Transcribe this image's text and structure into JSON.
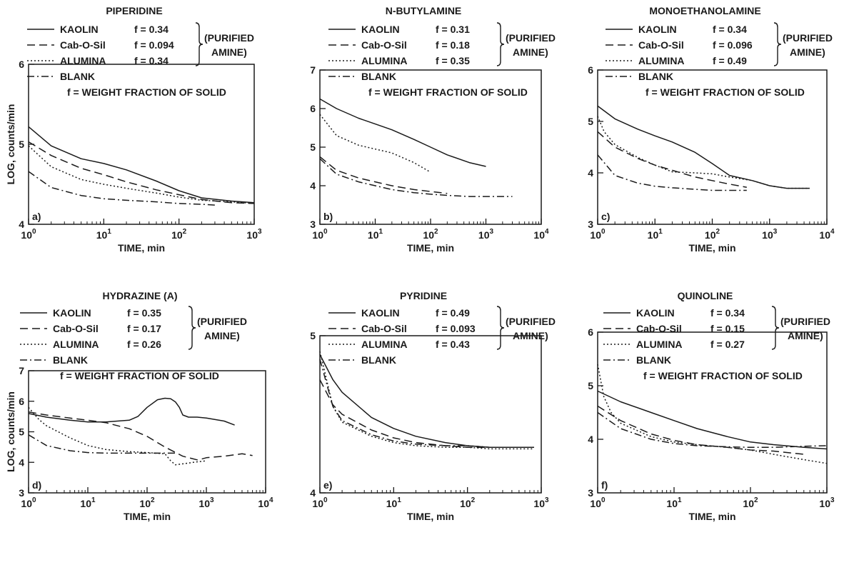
{
  "chart_data": [
    {
      "panel_label": "a)",
      "type": "line",
      "title": "PIPERIDINE",
      "xlabel": "TIME, min",
      "ylabel": "LOG, counts/min",
      "x_scale": "log",
      "xlim": [
        1,
        1000
      ],
      "ylim": [
        4,
        6
      ],
      "x_ticks": [
        "10^0",
        "10^1",
        "10^2",
        "10^3"
      ],
      "y_ticks": [
        "4",
        "5",
        "6"
      ],
      "legend_note": "f = WEIGHT FRACTION OF SOLID",
      "bracket_label": [
        "(PURIFIED",
        "AMINE)"
      ],
      "series": [
        {
          "name": "KAOLIN",
          "f_label": "f = 0.34",
          "style": "solid",
          "x": [
            1,
            2,
            5,
            10,
            20,
            50,
            100,
            200,
            500,
            1000
          ],
          "y": [
            5.22,
            4.98,
            4.82,
            4.76,
            4.68,
            4.54,
            4.42,
            4.33,
            4.29,
            4.27
          ]
        },
        {
          "name": "Cab-O-Sil",
          "f_label": "f = 0.094",
          "style": "dashed",
          "x": [
            1,
            2,
            5,
            10,
            20,
            50,
            100,
            200,
            500,
            1000
          ],
          "y": [
            5.03,
            4.86,
            4.7,
            4.62,
            4.53,
            4.43,
            4.37,
            4.31,
            4.27,
            4.26
          ]
        },
        {
          "name": "ALUMINA",
          "f_label": "f = 0.34",
          "style": "dotted",
          "x": [
            1,
            2,
            5,
            10,
            20,
            50,
            100,
            200,
            500,
            1000
          ],
          "y": [
            4.98,
            4.72,
            4.56,
            4.5,
            4.45,
            4.39,
            4.34,
            4.3,
            4.28,
            4.26
          ]
        },
        {
          "name": "BLANK",
          "style": "dashdot",
          "x": [
            1,
            2,
            5,
            10,
            20,
            50,
            100,
            200,
            300
          ],
          "y": [
            4.66,
            4.46,
            4.36,
            4.32,
            4.3,
            4.28,
            4.26,
            4.25,
            4.24
          ]
        }
      ]
    },
    {
      "panel_label": "b)",
      "type": "line",
      "title": "N-BUTYLAMINE",
      "xlabel": "TIME, min",
      "ylabel": "",
      "x_scale": "log",
      "xlim": [
        1,
        10000
      ],
      "ylim": [
        3,
        7
      ],
      "x_ticks": [
        "10^0",
        "10^1",
        "10^2",
        "10^3",
        "10^4"
      ],
      "y_ticks": [
        "3",
        "4",
        "5",
        "6",
        "7"
      ],
      "legend_note": "f = WEIGHT FRACTION OF SOLID",
      "bracket_label": [
        "(PURIFIED",
        "AMINE)"
      ],
      "series": [
        {
          "name": "KAOLIN",
          "f_label": "f = 0.31",
          "style": "solid",
          "x": [
            1,
            2,
            5,
            10,
            20,
            50,
            100,
            200,
            500,
            1000
          ],
          "y": [
            6.25,
            6.0,
            5.75,
            5.6,
            5.45,
            5.2,
            5.0,
            4.8,
            4.6,
            4.5
          ]
        },
        {
          "name": "Cab-O-Sil",
          "f_label": "f = 0.18",
          "style": "dashed",
          "x": [
            1,
            2,
            5,
            10,
            20,
            50,
            100,
            200
          ],
          "y": [
            4.75,
            4.4,
            4.2,
            4.1,
            4.0,
            3.9,
            3.85,
            3.8
          ]
        },
        {
          "name": "ALUMINA",
          "f_label": "f = 0.35",
          "style": "dotted",
          "x": [
            1,
            2,
            5,
            10,
            20,
            50,
            100
          ],
          "y": [
            5.85,
            5.3,
            5.05,
            4.95,
            4.85,
            4.6,
            4.35
          ]
        },
        {
          "name": "BLANK",
          "style": "dashdot",
          "x": [
            1,
            2,
            5,
            10,
            20,
            50,
            100,
            200,
            500,
            1000,
            3000
          ],
          "y": [
            4.7,
            4.3,
            4.1,
            4.0,
            3.9,
            3.82,
            3.78,
            3.75,
            3.72,
            3.72,
            3.72
          ]
        }
      ]
    },
    {
      "panel_label": "c)",
      "type": "line",
      "title": "MONOETHANOLAMINE",
      "xlabel": "TIME, min",
      "ylabel": "",
      "x_scale": "log",
      "xlim": [
        1,
        10000
      ],
      "ylim": [
        3,
        6
      ],
      "x_ticks": [
        "10^0",
        "10^1",
        "10^2",
        "10^3",
        "10^4"
      ],
      "y_ticks": [
        "3",
        "4",
        "5",
        "6"
      ],
      "legend_note": "f = WEIGHT FRACTION OF SOLID",
      "bracket_label": [
        "(PURIFIED",
        "AMINE)"
      ],
      "series": [
        {
          "name": "KAOLIN",
          "f_label": "f = 0.34",
          "style": "solid",
          "x": [
            1,
            2,
            5,
            10,
            20,
            50,
            100,
            200,
            500,
            1000,
            2000,
            5000
          ],
          "y": [
            5.3,
            5.05,
            4.85,
            4.72,
            4.6,
            4.4,
            4.18,
            3.95,
            3.85,
            3.75,
            3.7,
            3.7
          ]
        },
        {
          "name": "Cab-O-Sil",
          "f_label": "f = 0.096",
          "style": "dashed",
          "x": [
            1,
            2,
            5,
            10,
            20,
            50,
            100,
            200,
            400
          ],
          "y": [
            4.8,
            4.5,
            4.28,
            4.15,
            4.05,
            3.92,
            3.85,
            3.78,
            3.72
          ]
        },
        {
          "name": "ALUMINA",
          "f_label": "f = 0.49",
          "style": "dotted",
          "x": [
            1,
            1.3,
            2,
            5,
            10,
            20,
            50,
            100,
            200,
            500,
            1000,
            2000,
            5000
          ],
          "y": [
            5.1,
            4.8,
            4.55,
            4.3,
            4.15,
            4.02,
            4.0,
            3.98,
            3.92,
            3.85,
            3.75,
            3.7,
            3.7
          ]
        },
        {
          "name": "BLANK",
          "style": "dashdot",
          "x": [
            1,
            2,
            5,
            10,
            20,
            50,
            100,
            200,
            400
          ],
          "y": [
            4.35,
            3.95,
            3.8,
            3.74,
            3.71,
            3.68,
            3.66,
            3.66,
            3.66
          ]
        }
      ]
    },
    {
      "panel_label": "d)",
      "type": "line",
      "title": "HYDRAZINE (A)",
      "xlabel": "TIME, min",
      "ylabel": "LOG, counts/min",
      "x_scale": "log",
      "xlim": [
        1,
        10000
      ],
      "ylim": [
        3,
        7
      ],
      "x_ticks": [
        "10^0",
        "10^1",
        "10^2",
        "10^3",
        "10^4"
      ],
      "y_ticks": [
        "3",
        "4",
        "5",
        "6",
        "7"
      ],
      "legend_note": "f = WEIGHT FRACTION OF SOLID",
      "bracket_label": [
        "(PURIFIED",
        "AMINE)"
      ],
      "series": [
        {
          "name": "KAOLIN",
          "f_label": "f = 0.35",
          "style": "solid",
          "x": [
            1,
            2,
            5,
            10,
            20,
            50,
            70,
            100,
            150,
            200,
            250,
            300,
            350,
            400,
            500,
            700,
            1000,
            2000,
            3000
          ],
          "y": [
            5.6,
            5.48,
            5.38,
            5.32,
            5.32,
            5.38,
            5.5,
            5.8,
            6.05,
            6.1,
            6.08,
            5.98,
            5.8,
            5.55,
            5.48,
            5.48,
            5.45,
            5.35,
            5.22
          ]
        },
        {
          "name": "Cab-O-Sil",
          "f_label": "f = 0.17",
          "style": "dashed",
          "x": [
            1,
            2,
            5,
            10,
            20,
            50,
            100,
            200,
            400,
            700,
            800,
            1000,
            2000,
            4000,
            6000
          ],
          "y": [
            5.65,
            5.55,
            5.45,
            5.38,
            5.3,
            5.1,
            4.85,
            4.5,
            4.2,
            4.08,
            4.1,
            4.15,
            4.2,
            4.28,
            4.22
          ]
        },
        {
          "name": "ALUMINA",
          "f_label": "f = 0.26",
          "style": "dotted",
          "x": [
            1,
            1.5,
            2,
            5,
            10,
            20,
            50,
            100,
            200,
            250,
            300,
            400,
            600,
            1000
          ],
          "y": [
            5.8,
            5.4,
            5.2,
            4.8,
            4.55,
            4.42,
            4.35,
            4.32,
            4.28,
            4.05,
            3.92,
            3.95,
            4.0,
            4.05
          ]
        },
        {
          "name": "BLANK",
          "style": "dashdot",
          "x": [
            1,
            2,
            5,
            10,
            20,
            50,
            100,
            200,
            300
          ],
          "y": [
            4.9,
            4.55,
            4.38,
            4.32,
            4.3,
            4.3,
            4.3,
            4.3,
            4.3
          ]
        }
      ]
    },
    {
      "panel_label": "e)",
      "type": "line",
      "title": "PYRIDINE",
      "xlabel": "TIME, min",
      "ylabel": "",
      "x_scale": "log",
      "xlim": [
        1,
        1000
      ],
      "ylim": [
        4,
        5
      ],
      "x_ticks": [
        "10^0",
        "10^1",
        "10^2",
        "10^3"
      ],
      "y_ticks": [
        "4",
        "5"
      ],
      "legend_note": "",
      "bracket_label": [
        "(PURIFIED",
        "AMINE)"
      ],
      "series": [
        {
          "name": "KAOLIN",
          "f_label": "f = 0.49",
          "style": "solid",
          "x": [
            1,
            1.5,
            2,
            5,
            10,
            20,
            50,
            100,
            200,
            500,
            800
          ],
          "y": [
            4.88,
            4.72,
            4.64,
            4.48,
            4.41,
            4.36,
            4.32,
            4.3,
            4.29,
            4.29,
            4.29
          ]
        },
        {
          "name": "Cab-O-Sil",
          "f_label": "f = 0.093",
          "style": "dashed",
          "x": [
            1,
            1.5,
            2,
            5,
            10,
            20,
            50,
            100,
            200,
            500,
            800
          ],
          "y": [
            4.72,
            4.56,
            4.5,
            4.4,
            4.35,
            4.32,
            4.3,
            4.29,
            4.29,
            4.29,
            4.29
          ]
        },
        {
          "name": "ALUMINA",
          "f_label": "f = 0.43",
          "style": "dotted",
          "x": [
            1,
            1.5,
            2,
            5,
            10,
            20,
            50,
            100,
            200,
            400,
            800
          ],
          "y": [
            4.9,
            4.55,
            4.45,
            4.36,
            4.32,
            4.3,
            4.29,
            4.29,
            4.28,
            4.28,
            4.28
          ]
        },
        {
          "name": "BLANK",
          "style": "dashdot",
          "x": [
            1,
            1.5,
            2,
            5,
            10,
            20,
            50,
            100,
            200,
            500,
            800
          ],
          "y": [
            4.85,
            4.55,
            4.46,
            4.37,
            4.33,
            4.31,
            4.3,
            4.3,
            4.29,
            4.29,
            4.29
          ]
        }
      ]
    },
    {
      "panel_label": "f)",
      "type": "line",
      "title": "QUINOLINE",
      "xlabel": "TIME, min",
      "ylabel": "",
      "x_scale": "log",
      "xlim": [
        1,
        1000
      ],
      "ylim": [
        3,
        6
      ],
      "x_ticks": [
        "10^0",
        "10^1",
        "10^2",
        "10^3"
      ],
      "y_ticks": [
        "3",
        "4",
        "5",
        "6"
      ],
      "legend_note": "f = WEIGHT FRACTION OF SOLID",
      "bracket_label": [
        "(PURIFIED",
        "AMINE)"
      ],
      "series": [
        {
          "name": "KAOLIN",
          "f_label": "f = 0.34",
          "style": "solid",
          "x": [
            1,
            2,
            5,
            10,
            20,
            50,
            100,
            200,
            500,
            1000
          ],
          "y": [
            4.9,
            4.7,
            4.5,
            4.35,
            4.2,
            4.05,
            3.95,
            3.9,
            3.85,
            3.82
          ]
        },
        {
          "name": "Cab-O-Sil",
          "f_label": "f = 0.15",
          "style": "dashed",
          "x": [
            1,
            2,
            5,
            10,
            20,
            50,
            100,
            200,
            500
          ],
          "y": [
            4.62,
            4.35,
            4.1,
            3.98,
            3.9,
            3.85,
            3.8,
            3.78,
            3.72
          ]
        },
        {
          "name": "ALUMINA",
          "f_label": "f = 0.27",
          "style": "dotted",
          "x": [
            1,
            1.2,
            1.5,
            2,
            5,
            10,
            20,
            50,
            100,
            200,
            500,
            1000
          ],
          "y": [
            5.4,
            4.8,
            4.5,
            4.3,
            4.05,
            3.95,
            3.9,
            3.85,
            3.8,
            3.72,
            3.62,
            3.55
          ]
        },
        {
          "name": "BLANK",
          "style": "dashdot",
          "x": [
            1,
            2,
            5,
            10,
            20,
            50,
            100,
            200,
            500,
            1000
          ],
          "y": [
            4.5,
            4.2,
            4.0,
            3.92,
            3.88,
            3.86,
            3.85,
            3.85,
            3.87,
            3.88
          ]
        }
      ]
    }
  ]
}
